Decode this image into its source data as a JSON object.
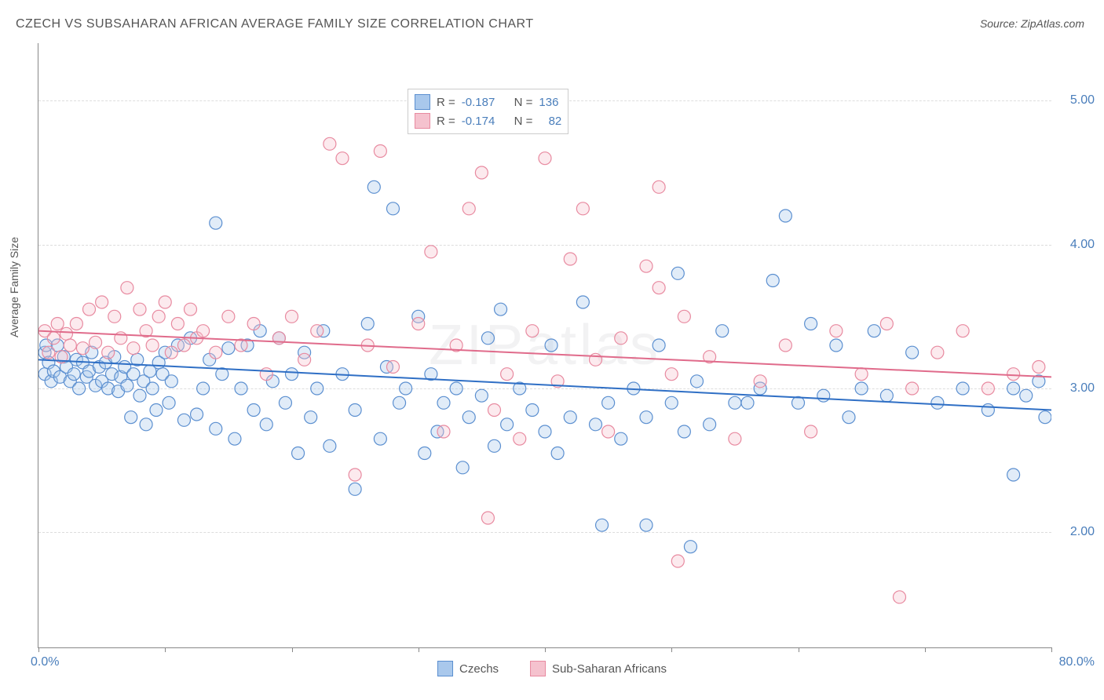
{
  "title": "CZECH VS SUBSAHARAN AFRICAN AVERAGE FAMILY SIZE CORRELATION CHART",
  "source_label": "Source:",
  "source_name": "ZipAtlas.com",
  "ylabel": "Average Family Size",
  "watermark": "ZIPatlas",
  "chart": {
    "type": "scatter",
    "xlim": [
      0,
      80
    ],
    "ylim": [
      1.2,
      5.4
    ],
    "x_axis_label_left": "0.0%",
    "x_axis_label_right": "80.0%",
    "y_ticks": [
      2.0,
      3.0,
      4.0,
      5.0
    ],
    "y_tick_labels": [
      "2.00",
      "3.00",
      "4.00",
      "5.00"
    ],
    "x_tick_positions": [
      0,
      10,
      20,
      30,
      40,
      50,
      60,
      70,
      80
    ],
    "background_color": "#ffffff",
    "grid_color": "#dddddd",
    "marker_radius": 8,
    "marker_fill_opacity": 0.35,
    "marker_stroke_width": 1.2,
    "trend_line_width": 2,
    "series": [
      {
        "name": "Czechs",
        "color_fill": "#a9c8ec",
        "color_stroke": "#5b8fd0",
        "trend_color": "#2f6fc5",
        "R": "-0.187",
        "N": "136",
        "trend": {
          "x1": 0,
          "y1": 3.2,
          "x2": 80,
          "y2": 2.85
        },
        "points": [
          [
            0.5,
            3.25
          ],
          [
            0.5,
            3.1
          ],
          [
            0.6,
            3.3
          ],
          [
            0.8,
            3.18
          ],
          [
            1.0,
            3.05
          ],
          [
            1.2,
            3.12
          ],
          [
            1.5,
            3.3
          ],
          [
            1.7,
            3.08
          ],
          [
            2.0,
            3.22
          ],
          [
            2.2,
            3.15
          ],
          [
            2.5,
            3.05
          ],
          [
            2.8,
            3.1
          ],
          [
            3.0,
            3.2
          ],
          [
            3.2,
            3.0
          ],
          [
            3.5,
            3.18
          ],
          [
            3.8,
            3.08
          ],
          [
            4.0,
            3.12
          ],
          [
            4.2,
            3.25
          ],
          [
            4.5,
            3.02
          ],
          [
            4.8,
            3.15
          ],
          [
            5.0,
            3.05
          ],
          [
            5.3,
            3.18
          ],
          [
            5.5,
            3.0
          ],
          [
            5.8,
            3.1
          ],
          [
            6.0,
            3.22
          ],
          [
            6.3,
            2.98
          ],
          [
            6.5,
            3.08
          ],
          [
            6.8,
            3.15
          ],
          [
            7.0,
            3.02
          ],
          [
            7.3,
            2.8
          ],
          [
            7.5,
            3.1
          ],
          [
            7.8,
            3.2
          ],
          [
            8.0,
            2.95
          ],
          [
            8.3,
            3.05
          ],
          [
            8.5,
            2.75
          ],
          [
            8.8,
            3.12
          ],
          [
            9.0,
            3.0
          ],
          [
            9.3,
            2.85
          ],
          [
            9.5,
            3.18
          ],
          [
            9.8,
            3.1
          ],
          [
            10.0,
            3.25
          ],
          [
            10.3,
            2.9
          ],
          [
            10.5,
            3.05
          ],
          [
            11.0,
            3.3
          ],
          [
            11.5,
            2.78
          ],
          [
            12.0,
            3.35
          ],
          [
            12.5,
            2.82
          ],
          [
            13.0,
            3.0
          ],
          [
            13.5,
            3.2
          ],
          [
            14.0,
            4.15
          ],
          [
            14.0,
            2.72
          ],
          [
            14.5,
            3.1
          ],
          [
            15.0,
            3.28
          ],
          [
            15.5,
            2.65
          ],
          [
            16.0,
            3.0
          ],
          [
            16.5,
            3.3
          ],
          [
            17.0,
            2.85
          ],
          [
            17.5,
            3.4
          ],
          [
            18.0,
            2.75
          ],
          [
            18.5,
            3.05
          ],
          [
            19.0,
            3.35
          ],
          [
            19.5,
            2.9
          ],
          [
            20.0,
            3.1
          ],
          [
            20.5,
            2.55
          ],
          [
            21.0,
            3.25
          ],
          [
            21.5,
            2.8
          ],
          [
            22.0,
            3.0
          ],
          [
            22.5,
            3.4
          ],
          [
            23.0,
            2.6
          ],
          [
            24.0,
            3.1
          ],
          [
            25.0,
            2.85
          ],
          [
            25.0,
            2.3
          ],
          [
            26.0,
            3.45
          ],
          [
            26.5,
            4.4
          ],
          [
            27.0,
            2.65
          ],
          [
            27.5,
            3.15
          ],
          [
            28.0,
            4.25
          ],
          [
            28.5,
            2.9
          ],
          [
            29.0,
            3.0
          ],
          [
            30.0,
            3.5
          ],
          [
            30.5,
            2.55
          ],
          [
            31.0,
            3.1
          ],
          [
            31.5,
            2.7
          ],
          [
            32.0,
            2.9
          ],
          [
            33.0,
            3.0
          ],
          [
            33.5,
            2.45
          ],
          [
            34.0,
            2.8
          ],
          [
            35.0,
            2.95
          ],
          [
            35.5,
            3.35
          ],
          [
            36.0,
            2.6
          ],
          [
            36.5,
            3.55
          ],
          [
            37.0,
            2.75
          ],
          [
            38.0,
            3.0
          ],
          [
            39.0,
            2.85
          ],
          [
            40.0,
            2.7
          ],
          [
            40.5,
            3.3
          ],
          [
            41.0,
            2.55
          ],
          [
            42.0,
            2.8
          ],
          [
            43.0,
            3.6
          ],
          [
            44.0,
            2.75
          ],
          [
            44.5,
            2.05
          ],
          [
            45.0,
            2.9
          ],
          [
            46.0,
            2.65
          ],
          [
            47.0,
            3.0
          ],
          [
            48.0,
            2.8
          ],
          [
            48.0,
            2.05
          ],
          [
            49.0,
            3.3
          ],
          [
            50.0,
            2.9
          ],
          [
            50.5,
            3.8
          ],
          [
            51.0,
            2.7
          ],
          [
            51.5,
            1.9
          ],
          [
            52.0,
            3.05
          ],
          [
            53.0,
            2.75
          ],
          [
            54.0,
            3.4
          ],
          [
            55.0,
            2.9
          ],
          [
            56.0,
            2.9
          ],
          [
            57.0,
            3.0
          ],
          [
            58.0,
            3.75
          ],
          [
            59.0,
            4.2
          ],
          [
            60.0,
            2.9
          ],
          [
            61.0,
            3.45
          ],
          [
            62.0,
            2.95
          ],
          [
            63.0,
            3.3
          ],
          [
            64.0,
            2.8
          ],
          [
            65.0,
            3.0
          ],
          [
            66.0,
            3.4
          ],
          [
            67.0,
            2.95
          ],
          [
            69.0,
            3.25
          ],
          [
            71.0,
            2.9
          ],
          [
            73.0,
            3.0
          ],
          [
            75.0,
            2.85
          ],
          [
            77.0,
            3.0
          ],
          [
            77.0,
            2.4
          ],
          [
            78.0,
            2.95
          ],
          [
            79.0,
            3.05
          ],
          [
            79.5,
            2.8
          ]
        ]
      },
      {
        "name": "Sub-Saharan Africans",
        "color_fill": "#f5c2ce",
        "color_stroke": "#e88aa0",
        "trend_color": "#e06b8b",
        "R": "-0.174",
        "N": "82",
        "trend": {
          "x1": 0,
          "y1": 3.4,
          "x2": 80,
          "y2": 3.08
        },
        "points": [
          [
            0.5,
            3.4
          ],
          [
            0.8,
            3.25
          ],
          [
            1.2,
            3.35
          ],
          [
            1.5,
            3.45
          ],
          [
            1.8,
            3.22
          ],
          [
            2.2,
            3.38
          ],
          [
            2.5,
            3.3
          ],
          [
            3.0,
            3.45
          ],
          [
            3.5,
            3.28
          ],
          [
            4.0,
            3.55
          ],
          [
            4.5,
            3.32
          ],
          [
            5.0,
            3.6
          ],
          [
            5.5,
            3.25
          ],
          [
            6.0,
            3.5
          ],
          [
            6.5,
            3.35
          ],
          [
            7.0,
            3.7
          ],
          [
            7.5,
            3.28
          ],
          [
            8.0,
            3.55
          ],
          [
            8.5,
            3.4
          ],
          [
            9.0,
            3.3
          ],
          [
            9.5,
            3.5
          ],
          [
            10.0,
            3.6
          ],
          [
            10.5,
            3.25
          ],
          [
            11.0,
            3.45
          ],
          [
            11.5,
            3.3
          ],
          [
            12.0,
            3.55
          ],
          [
            12.5,
            3.35
          ],
          [
            13.0,
            3.4
          ],
          [
            14.0,
            3.25
          ],
          [
            15.0,
            3.5
          ],
          [
            16.0,
            3.3
          ],
          [
            17.0,
            3.45
          ],
          [
            18.0,
            3.1
          ],
          [
            19.0,
            3.35
          ],
          [
            20.0,
            3.5
          ],
          [
            21.0,
            3.2
          ],
          [
            22.0,
            3.4
          ],
          [
            23.0,
            4.7
          ],
          [
            24.0,
            4.6
          ],
          [
            25.0,
            2.4
          ],
          [
            26.0,
            3.3
          ],
          [
            27.0,
            4.65
          ],
          [
            28.0,
            3.15
          ],
          [
            30.0,
            3.45
          ],
          [
            31.0,
            3.95
          ],
          [
            32.0,
            2.7
          ],
          [
            33.0,
            3.3
          ],
          [
            34.0,
            4.25
          ],
          [
            35.0,
            4.5
          ],
          [
            35.5,
            2.1
          ],
          [
            36.0,
            2.85
          ],
          [
            37.0,
            3.1
          ],
          [
            38.0,
            2.65
          ],
          [
            39.0,
            3.4
          ],
          [
            40.0,
            4.6
          ],
          [
            41.0,
            3.05
          ],
          [
            42.0,
            3.9
          ],
          [
            43.0,
            4.25
          ],
          [
            44.0,
            3.2
          ],
          [
            45.0,
            2.7
          ],
          [
            46.0,
            3.35
          ],
          [
            48.0,
            3.85
          ],
          [
            49.0,
            3.7
          ],
          [
            49.0,
            4.4
          ],
          [
            50.0,
            3.1
          ],
          [
            50.5,
            1.8
          ],
          [
            51.0,
            3.5
          ],
          [
            53.0,
            3.22
          ],
          [
            55.0,
            2.65
          ],
          [
            57.0,
            3.05
          ],
          [
            59.0,
            3.3
          ],
          [
            61.0,
            2.7
          ],
          [
            63.0,
            3.4
          ],
          [
            65.0,
            3.1
          ],
          [
            67.0,
            3.45
          ],
          [
            68.0,
            1.55
          ],
          [
            69.0,
            3.0
          ],
          [
            71.0,
            3.25
          ],
          [
            73.0,
            3.4
          ],
          [
            75.0,
            3.0
          ],
          [
            77.0,
            3.1
          ],
          [
            79.0,
            3.15
          ]
        ]
      }
    ]
  },
  "stats_labels": {
    "R": "R =",
    "N": "N ="
  },
  "legend": {
    "series1": "Czechs",
    "series2": "Sub-Saharan Africans"
  }
}
